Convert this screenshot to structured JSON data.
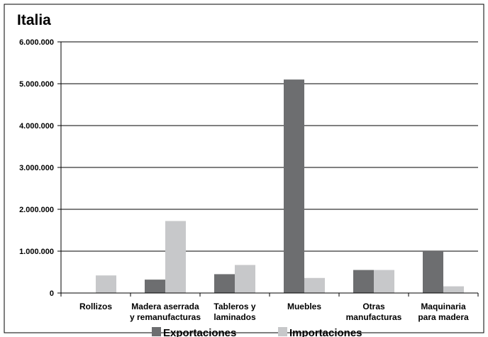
{
  "chart_data": {
    "type": "bar",
    "title": "Italia",
    "xlabel": "",
    "ylabel": "",
    "ylim": [
      0,
      6000000
    ],
    "yticks": [
      "0",
      "1.000.000",
      "2.000.000",
      "3.000.000",
      "4.000.000",
      "5.000.000",
      "6.000.000"
    ],
    "ytick_values": [
      0,
      1000000,
      2000000,
      3000000,
      4000000,
      5000000,
      6000000
    ],
    "grid": true,
    "legend_position": "bottom",
    "categories": [
      [
        "Rollizos"
      ],
      [
        "Madera aserrada",
        "y remanufacturas"
      ],
      [
        "Tableros y",
        "laminados"
      ],
      [
        "Muebles"
      ],
      [
        "Otras",
        "manufacturas"
      ],
      [
        "Maquinaria",
        "para madera"
      ]
    ],
    "series": [
      {
        "name": "Exportaciones",
        "color": "#6d6e70",
        "values": [
          5000,
          320000,
          450000,
          5100000,
          550000,
          1000000
        ]
      },
      {
        "name": "Importaciones",
        "color": "#c7c8ca",
        "values": [
          420000,
          1720000,
          670000,
          360000,
          550000,
          160000
        ]
      }
    ]
  }
}
